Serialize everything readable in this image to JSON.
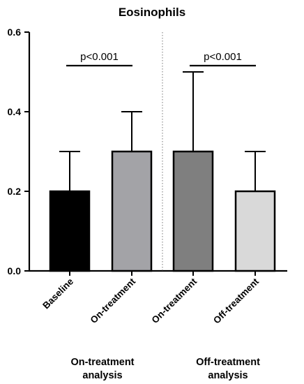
{
  "chart_data": {
    "type": "bar",
    "title": "Eosinophils",
    "xlabel": "",
    "ylabel": "",
    "ylim": [
      0,
      0.6
    ],
    "yticks": [
      "0.0",
      "0.2",
      "0.4",
      "0.6"
    ],
    "ytick_values": [
      0.0,
      0.2,
      0.4,
      0.6
    ],
    "grid": false,
    "legend": "none",
    "categories": [
      "Baseline",
      "On-treatment",
      "On-treatment",
      "Off-treatment"
    ],
    "values": [
      0.2,
      0.3,
      0.3,
      0.2
    ],
    "error_upper": [
      0.3,
      0.4,
      0.5,
      0.3
    ],
    "bar_colors": [
      "#000000",
      "#a3a3a7",
      "#7f7f7f",
      "#d9d9d9"
    ],
    "groups": [
      {
        "label": "On-treatment\nanalysis",
        "categories": [
          0,
          1
        ]
      },
      {
        "label": "Off-treatment\nanalysis",
        "categories": [
          2,
          3
        ]
      }
    ],
    "annotations": [
      {
        "text": "p<0.001",
        "from": 0,
        "to": 1
      },
      {
        "text": "p<0.001",
        "from": 2,
        "to": 3
      }
    ]
  }
}
